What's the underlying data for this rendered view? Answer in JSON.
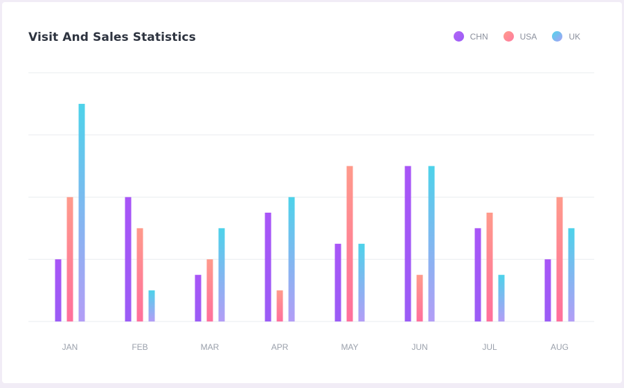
{
  "title": "Visit And Sales Statistics",
  "legend": [
    {
      "label": "CHN",
      "icon": "gradient-dot-icon",
      "gradient": [
        "#b266f5",
        "#9b5cf6"
      ]
    },
    {
      "label": "USA",
      "icon": "gradient-dot-icon",
      "gradient": [
        "#ff9c8a",
        "#ff7aa0"
      ]
    },
    {
      "label": "UK",
      "icon": "gradient-dot-icon",
      "gradient": [
        "#4fd6ea",
        "#a99ff5"
      ]
    }
  ],
  "colors": {
    "chn": [
      "#a855f7",
      "#9b5cf6"
    ],
    "usa": [
      "#ff9a8b",
      "#ff6f9c"
    ],
    "uk": [
      "#4dd2ea",
      "#b39df6"
    ],
    "grid": "#e9ecef",
    "tick": "#9aa0ab"
  },
  "chart_data": {
    "type": "bar",
    "categories": [
      "JAN",
      "FEB",
      "MAR",
      "APR",
      "MAY",
      "JUN",
      "JUL",
      "AUG"
    ],
    "series": [
      {
        "name": "CHN",
        "values": [
          20,
          40,
          15,
          35,
          25,
          50,
          30,
          20
        ]
      },
      {
        "name": "USA",
        "values": [
          40,
          30,
          20,
          10,
          50,
          15,
          35,
          40
        ]
      },
      {
        "name": "UK",
        "values": [
          70,
          10,
          30,
          40,
          25,
          50,
          15,
          30
        ]
      }
    ],
    "ylim": [
      0,
      80
    ],
    "grid": true,
    "legend_position": "top-right"
  }
}
